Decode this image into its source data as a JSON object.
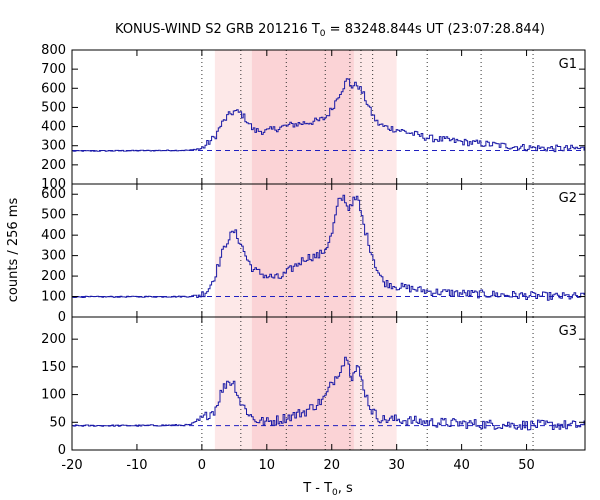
{
  "chart_data": {
    "type": "line",
    "title": "KONUS-WIND S2 GRB 201216 T",
    "title_subscript": "0",
    "title_rest": " = 83248.844s UT (23:07:28.844)",
    "xlabel": "T - T",
    "xlabel_subscript": "0",
    "xlabel_rest": ", s",
    "ylabel": "counts / 256 ms",
    "xlim": [
      -20,
      59
    ],
    "x_ticks": [
      -20,
      -10,
      0,
      10,
      20,
      30,
      40,
      50
    ],
    "x_tick_labels": [
      "-20",
      "-10",
      "0",
      "10",
      "20",
      "30",
      "40",
      "50"
    ],
    "shaded_regions": [
      {
        "x0": 2.0,
        "x1": 30.0,
        "color": "#fde8e8"
      },
      {
        "x0": 7.7,
        "x1": 23.4,
        "color": "#fbd3d6"
      }
    ],
    "vertical_lines": [
      0,
      6,
      13,
      19,
      22.8,
      24.5,
      26.3,
      34.7,
      43,
      51
    ],
    "line_color": "#1a1aa6",
    "background_color": "#2020c0",
    "panels": [
      {
        "label": "G1",
        "ylim": [
          100,
          800
        ],
        "y_ticks": [
          100,
          200,
          300,
          400,
          500,
          600,
          700,
          800
        ],
        "y_tick_labels": [
          "100",
          "200",
          "300",
          "400",
          "500",
          "600",
          "700",
          "800"
        ],
        "background": 275,
        "anchors": [
          [
            -20,
            272
          ],
          [
            -10,
            274
          ],
          [
            -2,
            276
          ],
          [
            0,
            285
          ],
          [
            1,
            315
          ],
          [
            2,
            345
          ],
          [
            3,
            410
          ],
          [
            4,
            455
          ],
          [
            5,
            480
          ],
          [
            6,
            470
          ],
          [
            7,
            430
          ],
          [
            8,
            380
          ],
          [
            10,
            375
          ],
          [
            12,
            395
          ],
          [
            14,
            410
          ],
          [
            16,
            420
          ],
          [
            18,
            430
          ],
          [
            19,
            445
          ],
          [
            20,
            490
          ],
          [
            21,
            560
          ],
          [
            22,
            620
          ],
          [
            22.5,
            650
          ],
          [
            23,
            610
          ],
          [
            24,
            620
          ],
          [
            25,
            560
          ],
          [
            26,
            480
          ],
          [
            27,
            420
          ],
          [
            28,
            400
          ],
          [
            30,
            385
          ],
          [
            35,
            340
          ],
          [
            40,
            320
          ],
          [
            45,
            305
          ],
          [
            50,
            290
          ],
          [
            55,
            285
          ],
          [
            59,
            285
          ]
        ],
        "noise": 18
      },
      {
        "label": "G2",
        "ylim": [
          0,
          650
        ],
        "y_ticks": [
          0,
          100,
          200,
          300,
          400,
          500,
          600
        ],
        "y_tick_labels": [
          "0",
          "100",
          "200",
          "300",
          "400",
          "500",
          "600"
        ],
        "background": 100,
        "anchors": [
          [
            -20,
            98
          ],
          [
            -10,
            99
          ],
          [
            -2,
            100
          ],
          [
            0,
            110
          ],
          [
            1,
            135
          ],
          [
            2,
            200
          ],
          [
            3,
            300
          ],
          [
            4,
            380
          ],
          [
            5,
            420
          ],
          [
            6,
            360
          ],
          [
            7,
            280
          ],
          [
            8,
            230
          ],
          [
            10,
            200
          ],
          [
            12,
            190
          ],
          [
            14,
            240
          ],
          [
            16,
            290
          ],
          [
            18,
            300
          ],
          [
            19,
            330
          ],
          [
            20,
            400
          ],
          [
            21,
            560
          ],
          [
            22,
            590
          ],
          [
            22.5,
            520
          ],
          [
            23,
            560
          ],
          [
            24,
            580
          ],
          [
            25,
            440
          ],
          [
            26,
            330
          ],
          [
            27,
            230
          ],
          [
            28,
            170
          ],
          [
            30,
            150
          ],
          [
            35,
            125
          ],
          [
            40,
            115
          ],
          [
            45,
            110
          ],
          [
            50,
            105
          ],
          [
            55,
            100
          ],
          [
            59,
            100
          ]
        ],
        "noise": 20
      },
      {
        "label": "G3",
        "ylim": [
          0,
          240
        ],
        "y_ticks": [
          0,
          50,
          100,
          150,
          200
        ],
        "y_tick_labels": [
          "0",
          "50",
          "100",
          "150",
          "200"
        ],
        "background": 44,
        "anchors": [
          [
            -20,
            44
          ],
          [
            -10,
            44
          ],
          [
            -2,
            45
          ],
          [
            0,
            55
          ],
          [
            1,
            65
          ],
          [
            2,
            72
          ],
          [
            3,
            105
          ],
          [
            4,
            125
          ],
          [
            5,
            120
          ],
          [
            6,
            85
          ],
          [
            7,
            70
          ],
          [
            8,
            55
          ],
          [
            10,
            50
          ],
          [
            12,
            55
          ],
          [
            14,
            62
          ],
          [
            16,
            70
          ],
          [
            18,
            85
          ],
          [
            19,
            95
          ],
          [
            20,
            120
          ],
          [
            21,
            140
          ],
          [
            22,
            160
          ],
          [
            22.5,
            175
          ],
          [
            23,
            130
          ],
          [
            24,
            150
          ],
          [
            25,
            110
          ],
          [
            26,
            75
          ],
          [
            27,
            60
          ],
          [
            28,
            55
          ],
          [
            30,
            55
          ],
          [
            35,
            50
          ],
          [
            40,
            48
          ],
          [
            45,
            46
          ],
          [
            50,
            45
          ],
          [
            55,
            45
          ],
          [
            59,
            44
          ]
        ],
        "noise": 9
      }
    ]
  }
}
